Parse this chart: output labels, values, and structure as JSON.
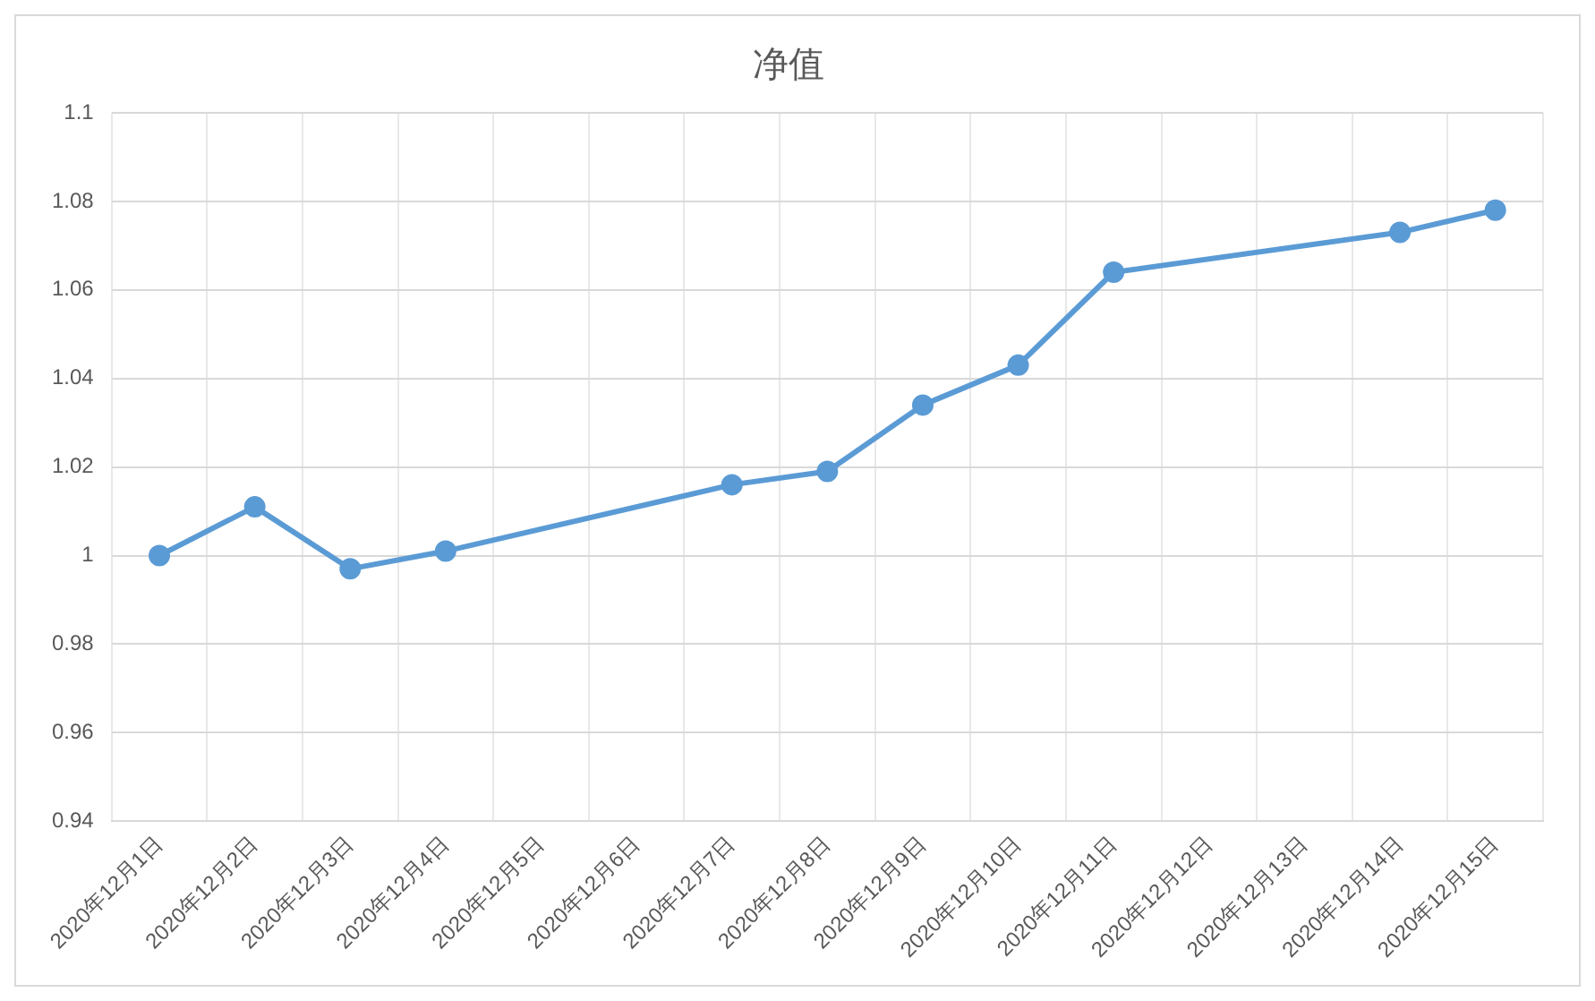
{
  "chart_data": {
    "type": "line",
    "title": "净值",
    "categories": [
      "2020年12月1日",
      "2020年12月2日",
      "2020年12月3日",
      "2020年12月4日",
      "2020年12月5日",
      "2020年12月6日",
      "2020年12月7日",
      "2020年12月8日",
      "2020年12月9日",
      "2020年12月10日",
      "2020年12月11日",
      "2020年12月12日",
      "2020年12月13日",
      "2020年12月14日",
      "2020年12月15日"
    ],
    "series": [
      {
        "color": "#5b9bd5",
        "values": [
          1.0,
          1.011,
          0.997,
          1.001,
          null,
          null,
          1.016,
          1.019,
          1.034,
          1.043,
          1.064,
          null,
          null,
          1.073,
          1.078
        ]
      }
    ],
    "ylim": [
      0.94,
      1.1
    ],
    "yticks": [
      0.94,
      0.96,
      0.98,
      1,
      1.02,
      1.04,
      1.06,
      1.08,
      1.1
    ],
    "grid": true,
    "legend": false,
    "marker": "circle",
    "line_style": "solid"
  }
}
